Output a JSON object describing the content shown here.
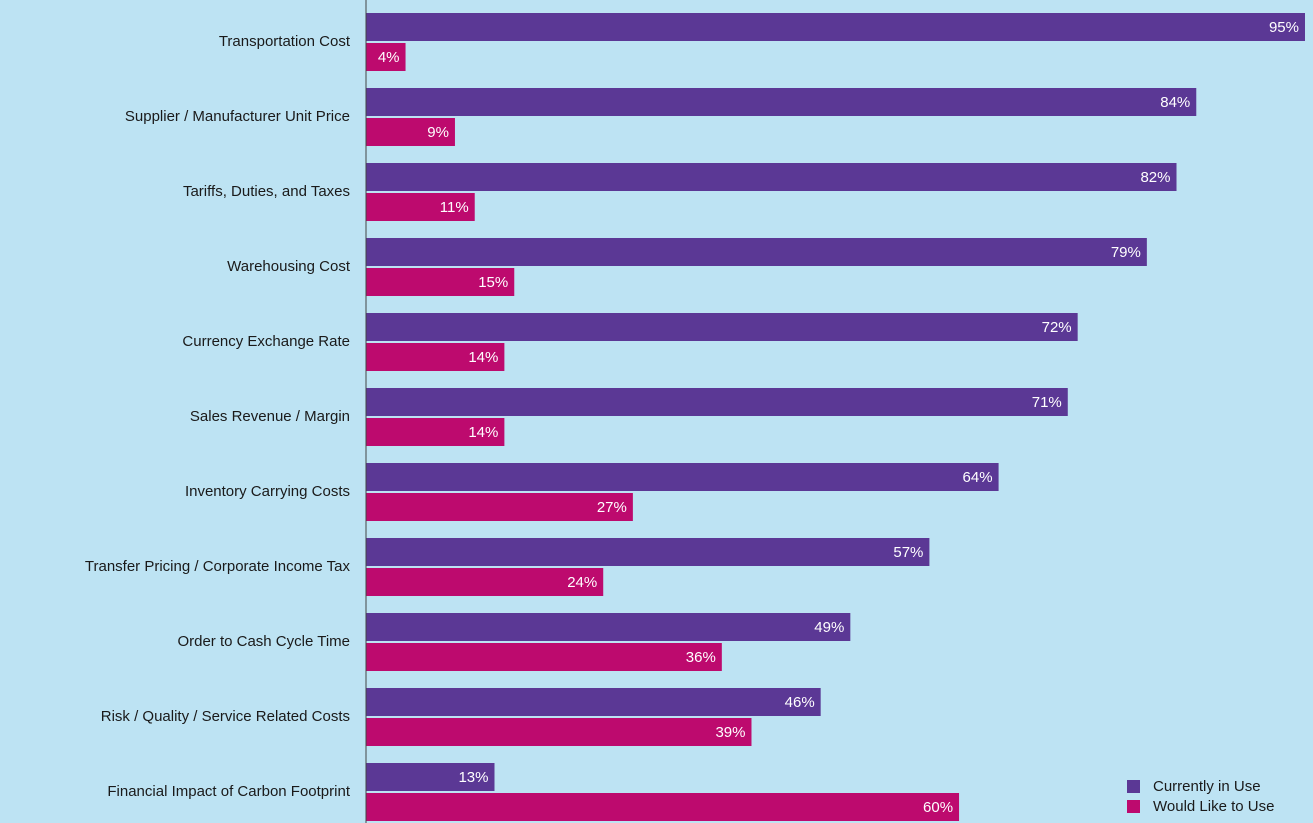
{
  "chart_data": {
    "type": "bar",
    "orientation": "horizontal",
    "categories": [
      "Transportation Cost",
      "Supplier / Manufacturer Unit Price",
      "Tariffs, Duties, and Taxes",
      "Warehousing Cost",
      "Currency Exchange Rate",
      "Sales Revenue / Margin",
      "Inventory Carrying Costs",
      "Transfer Pricing / Corporate Income Tax",
      "Order to Cash Cycle Time",
      "Risk / Quality / Service Related Costs",
      "Financial Impact of Carbon Footprint"
    ],
    "series": [
      {
        "name": "Currently in Use",
        "color": "#5b3895",
        "values": [
          95,
          84,
          82,
          79,
          72,
          71,
          64,
          57,
          49,
          46,
          13
        ],
        "value_labels": [
          "95%",
          "84%",
          "82%",
          "79%",
          "72%",
          "71%",
          "64%",
          "57%",
          "49%",
          "46%",
          "13%"
        ]
      },
      {
        "name": "Would Like to Use",
        "color": "#bd0a6e",
        "values": [
          4,
          9,
          11,
          15,
          14,
          14,
          27,
          24,
          36,
          39,
          60
        ],
        "value_labels": [
          "4%",
          "9%",
          "11%",
          "15%",
          "14%",
          "14%",
          "27%",
          "24%",
          "36%",
          "39%",
          "60%"
        ]
      }
    ],
    "legend": "lower right"
  }
}
